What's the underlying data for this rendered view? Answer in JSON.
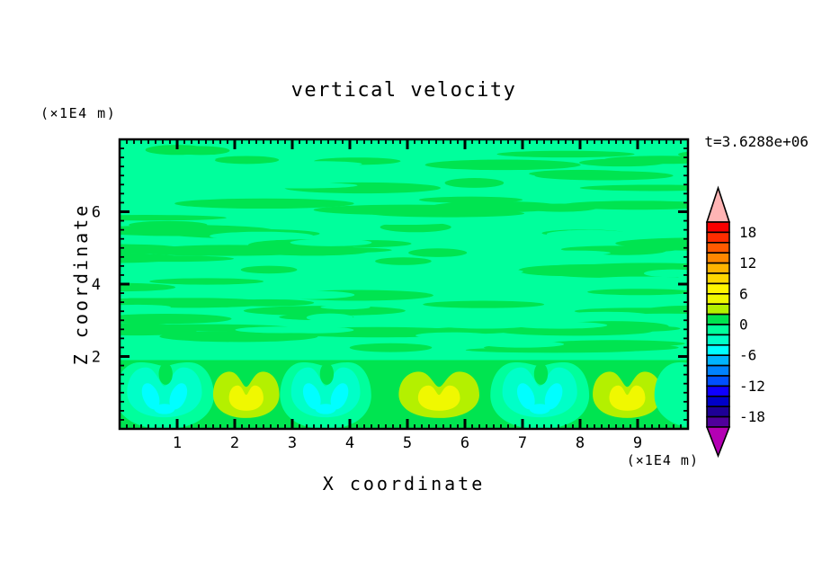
{
  "chart_data": {
    "type": "heatmap",
    "subtype": "filled_contour",
    "title": "vertical velocity",
    "xlabel": "X coordinate",
    "ylabel": "Z coordinate",
    "x_unit_label": "(×1E4 m)",
    "z_unit_label": "(×1E4 m)",
    "time_annotation": "t=3.6288e+06",
    "xlim": [
      0,
      9.875
    ],
    "zlim": [
      0,
      8
    ],
    "x_ticks": [
      1,
      2,
      3,
      4,
      5,
      6,
      7,
      8,
      9
    ],
    "x_minor_step": 0.125,
    "z_ticks": [
      2,
      4,
      6
    ],
    "z_minor_step": 0.25,
    "grid": false,
    "colorbar": {
      "position": "right",
      "range": [
        -20,
        20
      ],
      "contour_interval": 2,
      "tick_labels": [
        18,
        12,
        6,
        0,
        -6,
        -12,
        -18
      ],
      "segment_colors_top_to_bottom": [
        "#fa0000",
        "#ff2d00",
        "#ff5a00",
        "#ff8700",
        "#ffb400",
        "#ffd700",
        "#fff500",
        "#f0f800",
        "#b4f000",
        "#00e450",
        "#00ff9c",
        "#00ffc8",
        "#00ffff",
        "#00b4ff",
        "#0082ff",
        "#0050ff",
        "#0f00ff",
        "#0000c8",
        "#1e0096",
        "#50009b"
      ],
      "above_range_color": "#ffb4b4",
      "below_range_color": "#b400b4"
    },
    "field": {
      "description": "Filled contours of vertical velocity: weakly striated layers with |w| < 2 above z ≈ 2 (alternating green / spring-green streaks); a row of convective plumes below z ≈ 2 with downdrafts reaching the -6..-4 band (cyan cores) and updrafts reaching the +4..+6 band (yellow cores).",
      "palette": {
        "green_0_2": "#00e450",
        "springgreen_m2_0": "#00ff9c",
        "turquoise_m4_m2": "#00ffc8",
        "cyan_m6_m4": "#00ffff",
        "chartreuse_2_4": "#b4f000",
        "yellow_4_6": "#f0f800"
      },
      "plume_row_top_z": 1.9,
      "plumes": [
        {
          "x": 0.78,
          "type": "downdraft",
          "peak": -5,
          "width": 1.3
        },
        {
          "x": 2.2,
          "type": "updraft",
          "peak": 5,
          "width": 1.15
        },
        {
          "x": 3.58,
          "type": "downdraft",
          "peak": -5,
          "width": 1.2
        },
        {
          "x": 5.55,
          "type": "updraft",
          "peak": 5,
          "width": 1.4
        },
        {
          "x": 7.3,
          "type": "downdraft",
          "peak": -5,
          "width": 1.3
        },
        {
          "x": 8.82,
          "type": "updraft",
          "peak": 5,
          "width": 1.2
        },
        {
          "x": 10.15,
          "type": "downdraft",
          "peak": -2,
          "width": 1.3
        }
      ],
      "streaks": {
        "z_min": 2.0,
        "z_max": 8.0,
        "count": 78,
        "fragment_count": 34,
        "seed": 20240601
      }
    }
  }
}
